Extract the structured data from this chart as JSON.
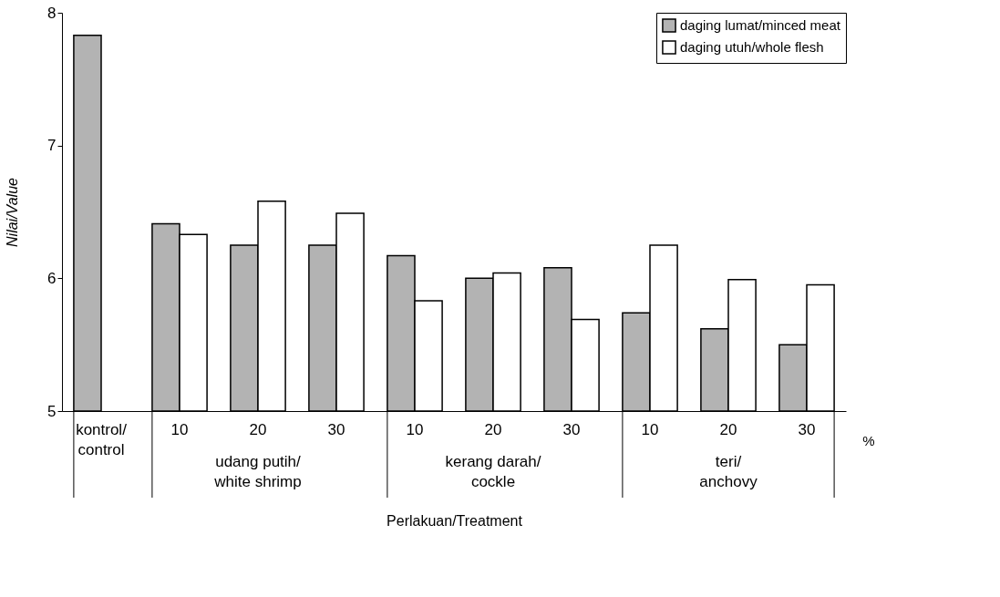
{
  "chart_data": {
    "type": "bar",
    "xlabel": "Perlakuan/Treatment",
    "ylabel": "Nilai/Value",
    "categories": [
      "kontrol/control",
      "10",
      "20",
      "30",
      "10",
      "20",
      "30",
      "10",
      "20",
      "30"
    ],
    "series": [
      {
        "name": "daging lumat/minced meat",
        "color": "#b3b3b3",
        "values": [
          7.83,
          6.41,
          6.25,
          6.25,
          6.17,
          6.0,
          6.08,
          5.74,
          5.62,
          5.5
        ]
      },
      {
        "name": "daging utuh/whole flesh",
        "color": "#ffffff",
        "values": [
          null,
          6.33,
          6.58,
          6.49,
          5.83,
          6.04,
          5.69,
          6.25,
          5.99,
          5.95
        ]
      }
    ],
    "ylim": [
      5,
      8
    ],
    "yticks": [
      5,
      6,
      7,
      8
    ],
    "grid": false,
    "legend": "top right",
    "annotations": [
      "udang putih/white shrimp",
      "kerang darah/cockle",
      "teri/anchovy",
      "%"
    ]
  }
}
